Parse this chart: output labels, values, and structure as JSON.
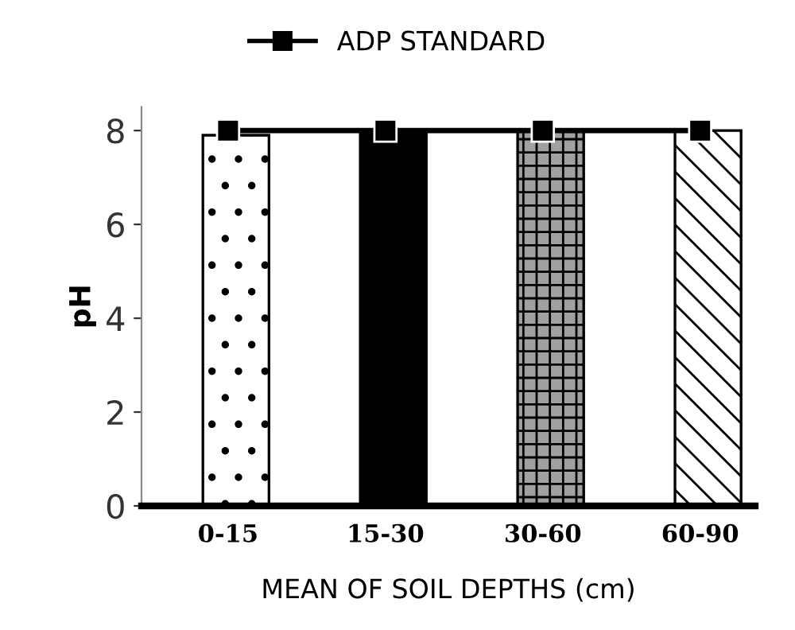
{
  "chart_data": {
    "type": "bar",
    "xlabel": "MEAN OF SOIL DEPTHS (cm)",
    "ylabel": "pH",
    "categories": [
      "0-15",
      "15-30",
      "30-60",
      "60-90"
    ],
    "series": [
      {
        "colors": [
          "#ffffff",
          "#000000",
          "#a0a0a0",
          "#ffffff"
        ],
        "values": [
          7.9,
          8.0,
          8.0,
          8.0
        ]
      },
      {
        "type": "line",
        "name": "ADP STANDARD",
        "color": "#000000",
        "values": [
          8,
          8,
          8,
          8
        ],
        "marker": "square",
        "line_style": "solid"
      }
    ],
    "ylim": [
      0,
      8.5
    ],
    "yticks": [
      0,
      2,
      4,
      6,
      8
    ],
    "grid": false,
    "legend": "top"
  }
}
